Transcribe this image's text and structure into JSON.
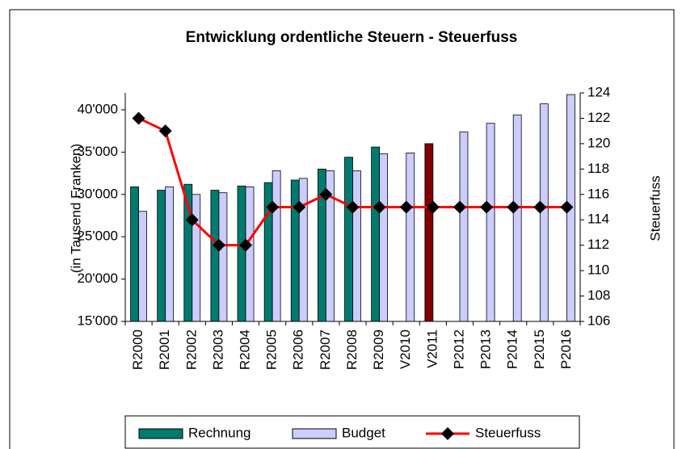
{
  "chart_data": {
    "type": "bar_line",
    "title": "Entwicklung ordentliche Steuern - Steuerfuss",
    "ylabel": "(in Tausend Franken)",
    "y2label": "Steuerfuss",
    "categories": [
      "R2000",
      "R2001",
      "R2002",
      "R2003",
      "R2004",
      "R2005",
      "R2006",
      "R2007",
      "R2008",
      "R2009",
      "V2010",
      "V2011",
      "P2012",
      "P2013",
      "P2014",
      "P2015",
      "P2016"
    ],
    "series": [
      {
        "name": "Rechnung",
        "color": "#007a6e",
        "colors": [
          "#007a6e",
          "#007a6e",
          "#007a6e",
          "#007a6e",
          "#007a6e",
          "#007a6e",
          "#007a6e",
          "#007a6e",
          "#007a6e",
          "#007a6e",
          "#007a6e",
          "#800000",
          "#007a6e",
          "#007a6e",
          "#007a6e",
          "#007a6e",
          "#007a6e"
        ],
        "values": [
          30900,
          30500,
          31200,
          30500,
          31000,
          31400,
          31700,
          33000,
          34400,
          35600,
          null,
          36000,
          null,
          null,
          null,
          null,
          null
        ]
      },
      {
        "name": "Budget",
        "color": "#ccccff",
        "values": [
          28000,
          30900,
          30000,
          30200,
          30900,
          32800,
          31900,
          32800,
          32800,
          34800,
          34900,
          null,
          37400,
          38400,
          39400,
          40700,
          41800
        ]
      },
      {
        "name": "Steuerfuss",
        "color": "#ff0000",
        "axis": "y2",
        "values": [
          122,
          121,
          114,
          112,
          112,
          115,
          115,
          116,
          115,
          115,
          115,
          115,
          115,
          115,
          115,
          115,
          115
        ]
      }
    ],
    "ylim": [
      15000,
      42000
    ],
    "yticks": [
      {
        "value": 15000,
        "label": "15'000"
      },
      {
        "value": 20000,
        "label": "20'000"
      },
      {
        "value": 25000,
        "label": "25'000"
      },
      {
        "value": 30000,
        "label": "30'000"
      },
      {
        "value": 35000,
        "label": "35'000"
      },
      {
        "value": 40000,
        "label": "40'000"
      }
    ],
    "y2lim": [
      106,
      124
    ],
    "y2ticks": [
      106,
      108,
      110,
      112,
      114,
      116,
      118,
      120,
      122,
      124
    ],
    "legend": "bottom"
  }
}
